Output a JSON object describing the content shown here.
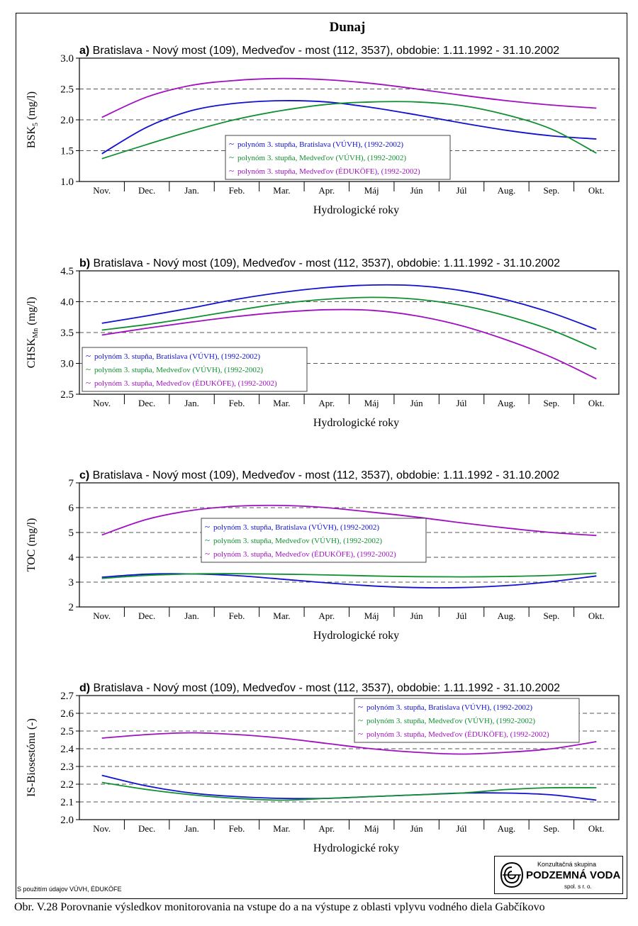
{
  "figure_title": "Dunaj",
  "source_note": "S použitím údajov VÚVH, ÉDUKÖFE",
  "logo": {
    "line1": "Konzultačná skupina",
    "line2": "PODZEMNÁ VODA",
    "line3": "spol. s r. o."
  },
  "caption": "Obr. V.28 Porovnanie výsledkov monitorovania na vstupe do a na výstupe z oblasti vplyvu vodného diela Gabčíkovo",
  "colors": {
    "bratislava_vuvh": "#1010d0",
    "medvedov_vuvh": "#109030",
    "medvedov_edukofe": "#a010c0"
  },
  "chart_data": [
    {
      "type": "line",
      "panel": "a)",
      "subtitle": "Bratislava - Nový most (109), Medveďov - most (112, 3537), obdobie: 1.11.1992 - 31.10.2002",
      "ylabel": "BSK5 (mg/l)",
      "ylabel_main": "BSK",
      "ylabel_sub": "5",
      "ylabel_unit": "(mg/l)",
      "xlabel": "Hydrologické roky",
      "categories": [
        "Nov.",
        "Dec.",
        "Jan.",
        "Feb.",
        "Mar.",
        "Apr.",
        "Máj",
        "Jún",
        "Júl",
        "Aug.",
        "Sep.",
        "Okt."
      ],
      "ylim": [
        1.0,
        3.0
      ],
      "yticks": [
        "1.0",
        "1.5",
        "2.0",
        "2.5",
        "3.0"
      ],
      "grid": [
        1.5,
        2.0,
        2.5
      ],
      "legend_position": "center",
      "series": [
        {
          "name": "polynóm 3. stupňa, Bratislava (VÚVH), (1992-2002)",
          "color": "#1010d0",
          "values": [
            1.45,
            1.88,
            2.15,
            2.27,
            2.31,
            2.29,
            2.2,
            2.08,
            1.95,
            1.83,
            1.74,
            1.69
          ]
        },
        {
          "name": "polynóm 3. stupňa, Medveďov (VÚVH), (1992-2002)",
          "color": "#109030",
          "values": [
            1.37,
            1.6,
            1.82,
            2.01,
            2.15,
            2.25,
            2.29,
            2.29,
            2.23,
            2.08,
            1.85,
            1.46
          ]
        },
        {
          "name": "polynóm 3. stupňa, Medveďov (ÉDUKÖFE), (1992-2002)",
          "color": "#a010c0",
          "values": [
            2.04,
            2.37,
            2.56,
            2.64,
            2.67,
            2.65,
            2.59,
            2.5,
            2.4,
            2.31,
            2.24,
            2.19
          ]
        }
      ]
    },
    {
      "type": "line",
      "panel": "b)",
      "subtitle": "Bratislava - Nový most (109), Medveďov - most (112, 3537), obdobie: 1.11.1992 - 31.10.2002",
      "ylabel": "CHSKMn (mg/l)",
      "ylabel_main": "CHSK",
      "ylabel_sub": "Mn",
      "ylabel_unit": "(mg/l)",
      "xlabel": "Hydrologické roky",
      "categories": [
        "Nov.",
        "Dec.",
        "Jan.",
        "Feb.",
        "Mar.",
        "Apr.",
        "Máj",
        "Jún",
        "Júl",
        "Aug.",
        "Sep.",
        "Okt."
      ],
      "ylim": [
        2.5,
        4.5
      ],
      "yticks": [
        "2.5",
        "3.0",
        "3.5",
        "4.0",
        "4.5"
      ],
      "grid": [
        3.0,
        3.5,
        4.0
      ],
      "legend_position": "bottom-left",
      "series": [
        {
          "name": "polynóm 3. stupňa, Bratislava (VÚVH), (1992-2002)",
          "color": "#1010d0",
          "values": [
            3.65,
            3.77,
            3.9,
            4.04,
            4.15,
            4.23,
            4.27,
            4.26,
            4.18,
            4.03,
            3.82,
            3.55
          ]
        },
        {
          "name": "polynóm 3. stupňa, Medveďov (VÚVH), (1992-2002)",
          "color": "#109030",
          "values": [
            3.54,
            3.63,
            3.74,
            3.86,
            3.97,
            4.04,
            4.07,
            4.04,
            3.94,
            3.77,
            3.54,
            3.23
          ]
        },
        {
          "name": "polynóm 3. stupňa, Medveďov (ÉDUKÖFE), (1992-2002)",
          "color": "#a010c0",
          "values": [
            3.46,
            3.57,
            3.67,
            3.76,
            3.83,
            3.87,
            3.86,
            3.77,
            3.61,
            3.38,
            3.1,
            2.75
          ]
        }
      ]
    },
    {
      "type": "line",
      "panel": "c)",
      "subtitle": "Bratislava - Nový most (109), Medveďov - most (112, 3537), obdobie: 1.11.1992 - 31.10.2002",
      "ylabel": "TOC (mg/l)",
      "ylabel_main": "TOC",
      "ylabel_sub": "",
      "ylabel_unit": "(mg/l)",
      "xlabel": "Hydrologické roky",
      "categories": [
        "Nov.",
        "Dec.",
        "Jan.",
        "Feb.",
        "Mar.",
        "Apr.",
        "Máj",
        "Jún",
        "Júl",
        "Aug.",
        "Sep.",
        "Okt."
      ],
      "ylim": [
        2,
        7
      ],
      "yticks": [
        "2",
        "3",
        "4",
        "5",
        "6",
        "7"
      ],
      "grid": [
        3,
        4,
        5,
        6
      ],
      "legend_position": "center",
      "series": [
        {
          "name": "polynóm 3. stupňa, Bratislava (VÚVH), (1992-2002)",
          "color": "#1010d0",
          "values": [
            3.2,
            3.32,
            3.33,
            3.26,
            3.12,
            2.97,
            2.85,
            2.78,
            2.78,
            2.86,
            3.02,
            3.25
          ]
        },
        {
          "name": "polynóm 3. stupňa, Medveďov (VÚVH), (1992-2002)",
          "color": "#109030",
          "values": [
            3.15,
            3.27,
            3.33,
            3.34,
            3.32,
            3.29,
            3.25,
            3.22,
            3.21,
            3.23,
            3.27,
            3.36
          ]
        },
        {
          "name": "polynóm 3. stupňa, Medveďov (ÉDUKÖFE), (1992-2002)",
          "color": "#a010c0",
          "values": [
            4.9,
            5.53,
            5.89,
            6.06,
            6.09,
            6.0,
            5.82,
            5.62,
            5.39,
            5.18,
            5.0,
            4.88
          ]
        }
      ]
    },
    {
      "type": "line",
      "panel": "d)",
      "subtitle": "Bratislava - Nový most (109), Medveďov - most (112, 3537), obdobie: 1.11.1992 - 31.10.2002",
      "ylabel": "IS-Biosestónu (-)",
      "ylabel_main": "IS-Biosestónu",
      "ylabel_sub": "",
      "ylabel_unit": "(-)",
      "xlabel": "Hydrologické roky",
      "categories": [
        "Nov.",
        "Dec.",
        "Jan.",
        "Feb.",
        "Mar.",
        "Apr.",
        "Máj",
        "Jún",
        "Júl",
        "Aug.",
        "Sep.",
        "Okt."
      ],
      "ylim": [
        2.0,
        2.7
      ],
      "yticks": [
        "2.0",
        "2.1",
        "2.2",
        "2.3",
        "2.4",
        "2.5",
        "2.6",
        "2.7"
      ],
      "grid": [
        2.1,
        2.2,
        2.3,
        2.4,
        2.5,
        2.6
      ],
      "legend_position": "top-right",
      "series": [
        {
          "name": "polynóm 3. stupňa, Bratislava (VÚVH), (1992-2002)",
          "color": "#1010d0",
          "values": [
            2.25,
            2.19,
            2.15,
            2.13,
            2.12,
            2.12,
            2.13,
            2.14,
            2.15,
            2.15,
            2.14,
            2.11
          ]
        },
        {
          "name": "polynóm 3. stupňa, Medveďov (VÚVH), (1992-2002)",
          "color": "#109030",
          "values": [
            2.21,
            2.17,
            2.14,
            2.12,
            2.11,
            2.12,
            2.13,
            2.14,
            2.15,
            2.17,
            2.18,
            2.18
          ]
        },
        {
          "name": "polynóm 3. stupňa, Medveďov (ÉDUKÖFE), (1992-2002)",
          "color": "#a010c0",
          "values": [
            2.46,
            2.48,
            2.49,
            2.48,
            2.46,
            2.43,
            2.4,
            2.38,
            2.37,
            2.38,
            2.4,
            2.44
          ]
        }
      ]
    }
  ]
}
